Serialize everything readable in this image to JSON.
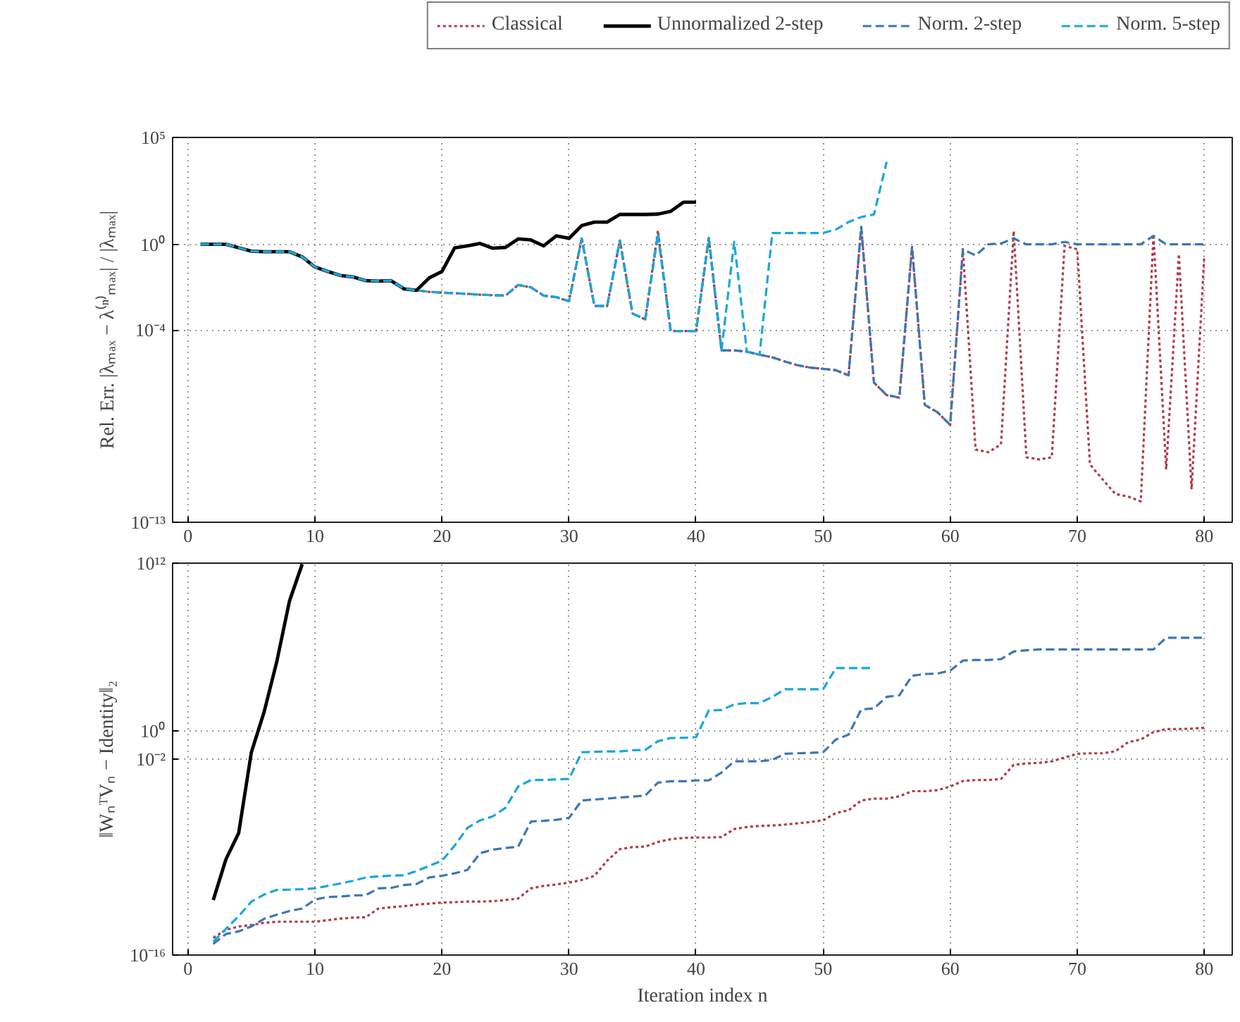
{
  "chart_data": [
    {
      "type": "line",
      "ylabel": "Rel. Err. |λₘₐₓ − λ⁽ⁿ⁾ₘₐₓ| / |λₘₐₓ|",
      "log": "y",
      "grid": true,
      "legend": "top",
      "xlim": [
        -1.2,
        82.2
      ],
      "xticks": [
        0,
        10,
        20,
        30,
        40,
        50,
        60,
        70,
        80
      ],
      "ylim": [
        1e-13,
        100000.0
      ],
      "yticks": [
        {
          "value": 1e-13,
          "label": "10⁻¹³"
        },
        {
          "value": 0.0001,
          "label": "10⁻⁴"
        },
        {
          "value": 1,
          "label": "10⁰"
        },
        {
          "value": 100000.0,
          "label": "10⁵"
        }
      ],
      "series": [
        {
          "name": "Classical",
          "color": "#b03a48",
          "line_style": "dotted",
          "x": [
            18,
            19,
            20,
            21,
            22,
            23,
            24,
            25,
            26,
            27,
            28,
            29,
            30,
            31,
            32,
            33,
            34,
            35,
            36,
            37,
            38,
            39,
            40,
            41,
            42,
            43,
            44,
            45,
            46,
            47,
            48,
            49,
            50,
            51,
            52,
            53,
            54,
            55,
            56,
            57,
            58,
            59,
            60,
            61,
            62,
            63,
            64,
            65,
            66,
            67,
            68,
            69,
            70,
            71,
            72,
            73,
            74,
            75,
            76,
            77,
            78,
            79,
            80
          ],
          "values": [
            0.0071,
            0.006,
            0.0055,
            0.0052,
            0.0048,
            0.0044,
            0.0042,
            0.004,
            0.0126,
            0.0098,
            0.004,
            0.0034,
            0.0022,
            1.9,
            0.0013,
            0.0013,
            1.5,
            0.00058,
            0.00031,
            4.5,
            8.9e-05,
            8.9e-05,
            8.9e-05,
            2.0,
            1.1e-05,
            1.1e-05,
            9.5e-06,
            6.9e-06,
            5.2e-06,
            3.3e-06,
            2.2e-06,
            1.7e-06,
            1.5e-06,
            1.3e-06,
            7.4e-07,
            6.5,
            3.4e-07,
            8.9e-08,
            6.8e-08,
            0.76,
            3.1e-08,
            1.4e-08,
            3.6e-09,
            0.59,
            2.5e-10,
            1.9e-10,
            4.4e-10,
            4.2,
            1.1e-10,
            8.7e-11,
            1.1e-10,
            0.85,
            0.59,
            5.1e-11,
            1e-11,
            2.1e-12,
            1.6e-12,
            9.5e-13,
            2.9,
            3e-11,
            0.35,
            3.5e-12,
            0.3
          ]
        },
        {
          "name": "Unnormalized 2-step",
          "color": "#000000",
          "line_style": "solid",
          "x": [
            1,
            2,
            3,
            4,
            5,
            6,
            7,
            8,
            9,
            10,
            11,
            12,
            13,
            14,
            15,
            16,
            17,
            18,
            19,
            20,
            21,
            22,
            23,
            24,
            25,
            26,
            27,
            28,
            29,
            30,
            31,
            32,
            33,
            34,
            35,
            36,
            37,
            38,
            39,
            40
          ],
          "values": [
            1,
            1,
            1,
            0.69,
            0.48,
            0.45,
            0.45,
            0.45,
            0.26,
            0.087,
            0.054,
            0.035,
            0.03,
            0.02,
            0.019,
            0.02,
            0.0083,
            0.0071,
            0.027,
            0.054,
            0.69,
            0.85,
            1.1,
            0.66,
            0.72,
            1.8,
            1.6,
            0.85,
            2.5,
            1.9,
            7.6,
            11,
            11,
            25,
            25,
            25,
            26,
            35,
            93,
            93
          ]
        },
        {
          "name": "Norm. 2-step",
          "color": "#3a78b4",
          "line_style": "dashed",
          "x": [
            1,
            2,
            3,
            4,
            5,
            6,
            7,
            8,
            9,
            10,
            11,
            12,
            13,
            14,
            15,
            16,
            17,
            18,
            19,
            20,
            21,
            22,
            23,
            24,
            25,
            26,
            27,
            28,
            29,
            30,
            31,
            32,
            33,
            34,
            35,
            36,
            37,
            38,
            39,
            40,
            41,
            42,
            43,
            44,
            45,
            46,
            47,
            48,
            49,
            50,
            51,
            52,
            53,
            54,
            55,
            56,
            57,
            58,
            59,
            60,
            61,
            62,
            63,
            64,
            65,
            66,
            67,
            68,
            69,
            70,
            71,
            72,
            73,
            74,
            75,
            76,
            77,
            78,
            79,
            80
          ],
          "values": [
            1,
            1,
            1,
            0.69,
            0.48,
            0.45,
            0.45,
            0.45,
            0.26,
            0.087,
            0.054,
            0.035,
            0.03,
            0.02,
            0.019,
            0.02,
            0.0083,
            0.0071,
            0.006,
            0.0055,
            0.0052,
            0.0048,
            0.0044,
            0.0042,
            0.004,
            0.0126,
            0.0098,
            0.004,
            0.0034,
            0.0022,
            1.9,
            0.0013,
            0.0013,
            1.5,
            0.00058,
            0.00031,
            3.2,
            8.9e-05,
            8.9e-05,
            8.9e-05,
            2.0,
            1.1e-05,
            1.1e-05,
            9.5e-06,
            6.9e-06,
            5.2e-06,
            3.3e-06,
            2.2e-06,
            1.7e-06,
            1.5e-06,
            1.3e-06,
            7.4e-07,
            6.5,
            3.4e-07,
            8.9e-08,
            6.8e-08,
            0.76,
            3.1e-08,
            1.4e-08,
            3.6e-09,
            0.59,
            0.3,
            1,
            1.1,
            1.9,
            1,
            1,
            1,
            1.3,
            1,
            1,
            1,
            1,
            1,
            1,
            2.5,
            1,
            1,
            1,
            1
          ]
        },
        {
          "name": "Norm. 5-step",
          "color": "#1aa7d8",
          "line_style": "dashed",
          "x": [
            1,
            2,
            3,
            4,
            5,
            6,
            7,
            8,
            9,
            10,
            11,
            12,
            13,
            14,
            15,
            16,
            17,
            18,
            19,
            20,
            21,
            22,
            23,
            24,
            25,
            26,
            27,
            28,
            29,
            30,
            31,
            32,
            33,
            34,
            35,
            36,
            37,
            38,
            39,
            40,
            41,
            42,
            43,
            44,
            45,
            46,
            47,
            48,
            49,
            50,
            51,
            52,
            53,
            54,
            55
          ],
          "values": [
            1,
            1,
            1,
            0.69,
            0.48,
            0.45,
            0.45,
            0.45,
            0.26,
            0.087,
            0.054,
            0.035,
            0.03,
            0.02,
            0.019,
            0.02,
            0.0083,
            0.0071,
            0.006,
            0.0055,
            0.0052,
            0.0048,
            0.0044,
            0.0042,
            0.004,
            0.0126,
            0.0098,
            0.004,
            0.0034,
            0.0022,
            1.9,
            0.0013,
            0.0013,
            1.5,
            0.00058,
            0.00031,
            3.2,
            8.9e-05,
            8.9e-05,
            8.9e-05,
            2.0,
            1.1e-05,
            1.3,
            9.5e-06,
            6.9e-06,
            3.4,
            3.4,
            3.4,
            3.4,
            3.4,
            4.9,
            11,
            19,
            25,
            7200
          ]
        }
      ]
    },
    {
      "type": "line",
      "xlabel": "Iteration index n",
      "ylabel": "‖WₙᵀVₙ − Identity‖₂",
      "log": "y",
      "grid": true,
      "xlim": [
        -1.2,
        82.2
      ],
      "xticks": [
        0,
        10,
        20,
        30,
        40,
        50,
        60,
        70,
        80
      ],
      "ylim": [
        1e-16,
        1000000000000.0
      ],
      "yticks": [
        {
          "value": 1e-16,
          "label": "10⁻¹⁶"
        },
        {
          "value": 0.01,
          "label": "10⁻²"
        },
        {
          "value": 1,
          "label": "10⁰"
        },
        {
          "value": 1000000000000.0,
          "label": "10¹²"
        }
      ],
      "series": [
        {
          "color": "#b03a48",
          "line_style": "dotted",
          "x": [
            2,
            3,
            4,
            5,
            6,
            7,
            8,
            9,
            10,
            11,
            12,
            13,
            14,
            15,
            16,
            17,
            18,
            19,
            20,
            21,
            22,
            23,
            24,
            25,
            26,
            27,
            28,
            29,
            30,
            31,
            32,
            33,
            34,
            35,
            36,
            37,
            38,
            39,
            40,
            41,
            42,
            43,
            44,
            45,
            46,
            47,
            48,
            49,
            50,
            51,
            52,
            53,
            54,
            55,
            56,
            57,
            58,
            59,
            60,
            61,
            62,
            63,
            64,
            65,
            66,
            67,
            68,
            69,
            70,
            71,
            72,
            73,
            74,
            75,
            76,
            77,
            78,
            79,
            80
          ],
          "values": [
            1.7e-15,
            6.3e-15,
            1.1e-14,
            1.4e-14,
            2e-14,
            2.4e-14,
            2.4e-14,
            2.4e-14,
            2.4e-14,
            3.1e-14,
            4e-14,
            4.7e-14,
            5e-14,
            2.1e-13,
            2.6e-13,
            3.1e-13,
            4e-13,
            4.7e-13,
            5.6e-13,
            6e-13,
            6.6e-13,
            6.6e-13,
            7.1e-13,
            8.5e-13,
            1.1e-12,
            5.8e-12,
            8.7e-12,
            1.1e-11,
            1.5e-11,
            2.3e-11,
            4.6e-11,
            5.5e-10,
            3.7e-09,
            5.1e-09,
            5.6e-09,
            1.2e-08,
            1.9e-08,
            2.3e-08,
            2.5e-08,
            2.5e-08,
            2.7e-08,
            1e-07,
            1.4e-07,
            1.7e-07,
            1.8e-07,
            2.1e-07,
            2.6e-07,
            3.2e-07,
            4.2e-07,
            1.4e-06,
            2.2e-06,
            1.1e-05,
            1.5e-05,
            1.5e-05,
            2.2e-05,
            5.1e-05,
            5.1e-05,
            6e-05,
            0.00011,
            0.00027,
            0.00032,
            0.00032,
            0.00038,
            0.0039,
            0.0049,
            0.0054,
            0.0069,
            0.013,
            0.024,
            0.026,
            0.026,
            0.036,
            0.16,
            0.25,
            0.85,
            1.4,
            1.4,
            1.5,
            1.7
          ]
        },
        {
          "color": "#000000",
          "line_style": "solid",
          "x": [
            2,
            3,
            4,
            5,
            6,
            7,
            8,
            9
          ],
          "values": [
            8.5e-13,
            7.1e-10,
            5.2e-08,
            0.031,
            23,
            93000.0,
            2000000000.0,
            850000000000.0
          ]
        },
        {
          "color": "#3a78b4",
          "line_style": "dashed",
          "x": [
            2,
            3,
            4,
            5,
            6,
            7,
            8,
            9,
            10,
            11,
            12,
            13,
            14,
            15,
            16,
            17,
            18,
            19,
            20,
            21,
            22,
            23,
            24,
            25,
            26,
            27,
            28,
            29,
            30,
            31,
            32,
            33,
            34,
            35,
            36,
            37,
            38,
            39,
            40,
            41,
            42,
            43,
            44,
            45,
            46,
            47,
            48,
            49,
            50,
            51,
            52,
            53,
            54,
            55,
            56,
            57,
            58,
            59,
            60,
            61,
            62,
            63,
            64,
            65,
            66,
            67,
            68,
            69,
            70,
            71,
            72,
            73,
            74,
            75,
            76,
            77,
            78,
            79,
            80
          ],
          "values": [
            6.3e-16,
            3.2e-15,
            4.9e-15,
            1.1e-14,
            3.9e-14,
            7.6e-14,
            1.4e-13,
            2.1e-13,
            9.1e-13,
            1.4e-12,
            1.5e-12,
            1.8e-12,
            1.9e-12,
            5.8e-12,
            6.3e-12,
            1e-11,
            1.2e-11,
            3.5e-11,
            4.6e-11,
            6.9e-11,
            1.2e-10,
            1.9e-09,
            3.4e-09,
            4.4e-09,
            5.6e-09,
            3.5e-07,
            3.9e-07,
            4.6e-07,
            6.3e-07,
            1.1e-05,
            1.3e-05,
            1.5e-05,
            1.8e-05,
            2.1e-05,
            2.5e-05,
            0.00021,
            0.00026,
            0.00026,
            0.0003,
            0.0003,
            0.0011,
            0.0069,
            0.0069,
            0.0069,
            0.0089,
            0.024,
            0.026,
            0.028,
            0.031,
            0.25,
            0.56,
            35,
            42,
            280,
            360,
            9100,
            12000.0,
            13000.0,
            21000.0,
            110000.0,
            120000.0,
            120000.0,
            140000.0,
            490000.0,
            590000.0,
            690000.0,
            690000.0,
            690000.0,
            690000.0,
            690000.0,
            690000.0,
            690000.0,
            690000.0,
            690000.0,
            690000.0,
            4700000.0,
            4700000.0,
            4700000.0,
            4700000.0
          ]
        },
        {
          "color": "#1aa7d8",
          "line_style": "dashed",
          "x": [
            2,
            3,
            4,
            5,
            6,
            7,
            8,
            9,
            10,
            11,
            12,
            13,
            14,
            15,
            16,
            17,
            18,
            19,
            20,
            21,
            22,
            23,
            24,
            25,
            26,
            27,
            28,
            29,
            30,
            31,
            32,
            33,
            34,
            35,
            36,
            37,
            38,
            39,
            40,
            41,
            42,
            43,
            44,
            45,
            46,
            47,
            48,
            49,
            50,
            51,
            52,
            53,
            54
          ],
          "values": [
            9.3e-16,
            7.4e-15,
            5.9e-14,
            6.6e-13,
            2.1e-12,
            4.5e-12,
            4.7e-12,
            5.1e-12,
            5.8e-12,
            8.7e-12,
            1.3e-11,
            2e-11,
            3.5e-11,
            4.2e-11,
            4.7e-11,
            5e-11,
            1e-10,
            2.4e-10,
            5.5e-10,
            6.6e-09,
            1.2e-07,
            4.2e-07,
            8.1e-07,
            3.3e-06,
            0.00011,
            0.00032,
            0.00032,
            0.00035,
            0.00038,
            0.031,
            0.033,
            0.035,
            0.035,
            0.043,
            0.045,
            0.19,
            0.32,
            0.33,
            0.37,
            30,
            32,
            81,
            100,
            100,
            280,
            980,
            980,
            980,
            980,
            32000.0,
            32000.0,
            32000.0,
            32000.0
          ]
        }
      ]
    }
  ]
}
